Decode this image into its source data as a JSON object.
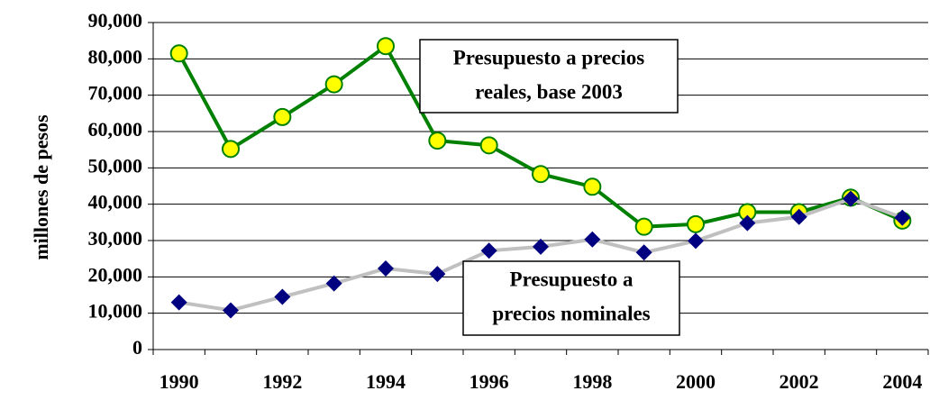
{
  "chart_data": {
    "type": "line",
    "y_label": "millones de pesos",
    "categories": [
      1990,
      null,
      1992,
      null,
      1994,
      null,
      1996,
      null,
      1998,
      null,
      2000,
      null,
      2002,
      null,
      2004
    ],
    "series": [
      {
        "name": "Presupuesto a precios reales, base 2003",
        "color": "#008000",
        "marker": "circle",
        "marker_color": "#ffff00",
        "values": [
          81500,
          55200,
          64000,
          73000,
          83500,
          57500,
          56200,
          48300,
          44800,
          33800,
          34500,
          37800,
          37800,
          41800,
          35500
        ]
      },
      {
        "name": "Presupuesto a precios nominales",
        "color": "#c0c0c0",
        "marker": "diamond",
        "marker_color": "#000080",
        "values": [
          13000,
          10800,
          14500,
          18200,
          22300,
          20800,
          27200,
          28300,
          30300,
          26700,
          29900,
          34800,
          36500,
          41500,
          36300
        ]
      }
    ],
    "annotations": [
      {
        "lines": [
          "Presupuesto a precios",
          "reales, base 2003"
        ]
      },
      {
        "lines": [
          "Presupuesto a",
          "precios nominales"
        ]
      }
    ],
    "ylim": [
      0,
      90000
    ],
    "yticks": [
      0,
      {
        "value": 10000,
        "label": "10,000"
      },
      {
        "value": 20000,
        "label": "20,000"
      },
      {
        "value": 30000,
        "label": "30,000"
      },
      {
        "value": 40000,
        "label": "40,000"
      },
      {
        "value": 50000,
        "label": "50,000"
      },
      {
        "value": 60000,
        "label": "60,000"
      },
      {
        "value": 70000,
        "label": "70,000"
      },
      {
        "value": 80000,
        "label": "80,000"
      },
      {
        "value": 90000,
        "label": "90,000"
      }
    ],
    "grid": true
  }
}
